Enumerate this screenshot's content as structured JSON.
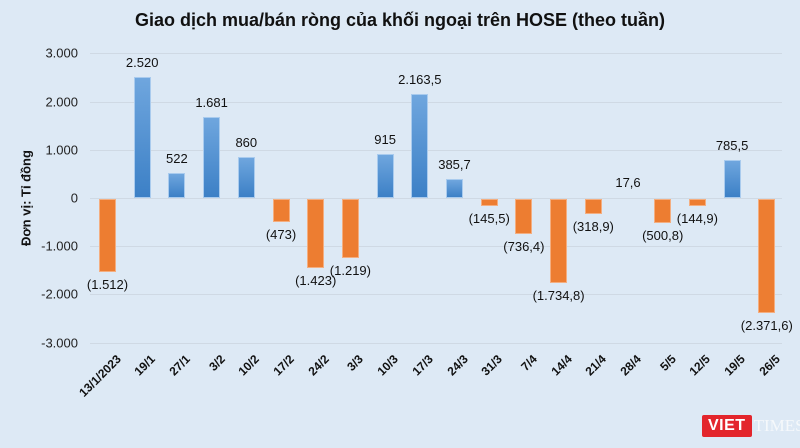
{
  "chart_data": {
    "type": "bar",
    "title": "Giao dịch mua/bán ròng của khối ngoại trên HOSE (theo tuần)",
    "xlabel": "",
    "ylabel": "Đơn vị: Tỉ đồng",
    "ylim": [
      -3000,
      3000
    ],
    "yticks": [
      3000,
      2000,
      1000,
      0,
      -1000,
      -2000,
      -3000
    ],
    "ytick_labels": [
      "3.000",
      "2.000",
      "1.000",
      "0",
      "-1.000",
      "-2.000",
      "-3.000"
    ],
    "grid": true,
    "legend": null,
    "categories": [
      "13/1/2023",
      "19/1",
      "27/1",
      "3/2",
      "10/2",
      "17/2",
      "24/2",
      "3/3",
      "10/3",
      "17/3",
      "24/3",
      "31/3",
      "7/4",
      "14/4",
      "21/4",
      "28/4",
      "5/5",
      "12/5",
      "19/5",
      "26/5"
    ],
    "values": [
      -1512,
      2520,
      522,
      1681,
      860,
      -473,
      -1423,
      -1219,
      915,
      2163.5,
      385.7,
      -145.5,
      -736.4,
      -1734.8,
      -318.9,
      17.6,
      -500.8,
      -144.9,
      785.5,
      -2371.6
    ],
    "value_labels": [
      "(1.512)",
      "2.520",
      "522",
      "1.681",
      "860",
      "(473)",
      "(1.423)",
      "(1.219)",
      "915",
      "2.163,5",
      "385,7",
      "(145,5)",
      "(736,4)",
      "(1.734,8)",
      "(318,9)",
      "17,6",
      "(500,8)",
      "(144,9)",
      "785,5",
      "(2.371,6)"
    ],
    "colors": {
      "positive": "#4a8bd0",
      "negative": "#ed7d31"
    }
  },
  "watermark": {
    "box": "VIET",
    "text": "TIMES"
  }
}
